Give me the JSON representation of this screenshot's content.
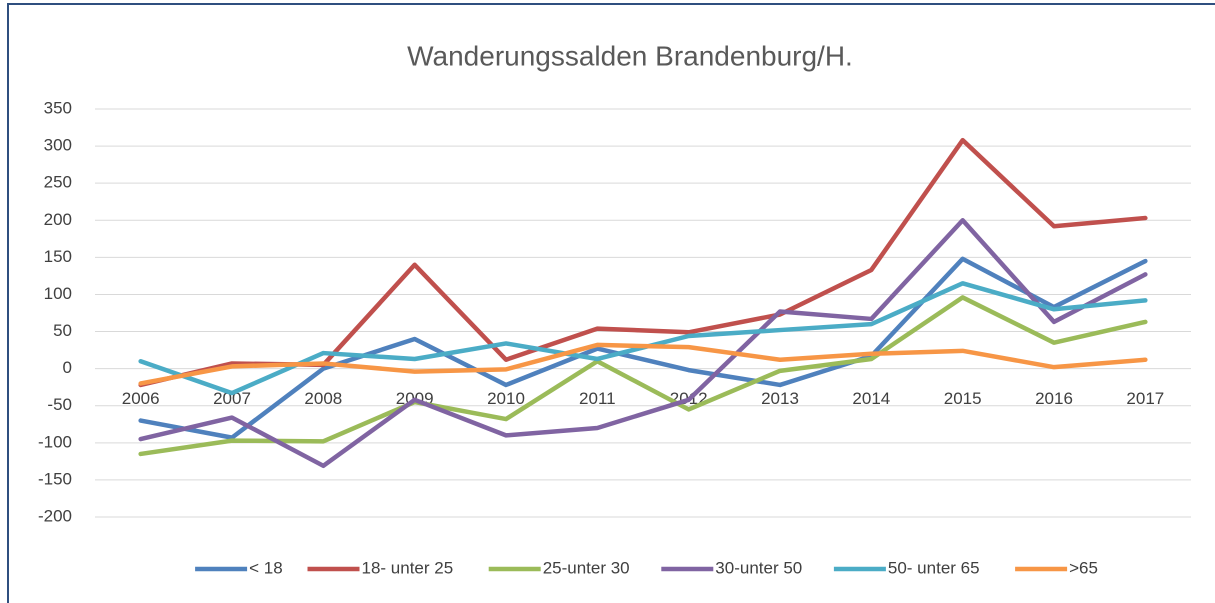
{
  "chart_data": {
    "type": "line",
    "title": "Wanderungssalden Brandenburg/H.",
    "categories": [
      "2006",
      "2007",
      "2008",
      "2009",
      "2010",
      "2011",
      "2012",
      "2013",
      "2014",
      "2015",
      "2016",
      "2017"
    ],
    "series": [
      {
        "name": "< 18",
        "color": "#4f81bd",
        "values": [
          -70,
          -93,
          0,
          40,
          -22,
          27,
          -2,
          -22,
          17,
          148,
          83,
          145
        ]
      },
      {
        "name": "18- unter 25",
        "color": "#c0504d",
        "values": [
          -22,
          7,
          5,
          140,
          12,
          54,
          49,
          73,
          133,
          308,
          192,
          203
        ]
      },
      {
        "name": "25-unter 30",
        "color": "#9bbb59",
        "values": [
          -115,
          -97,
          -98,
          -45,
          -68,
          10,
          -55,
          -3,
          13,
          96,
          35,
          63
        ]
      },
      {
        "name": "30-unter 50",
        "color": "#8064a2",
        "values": [
          -95,
          -66,
          -131,
          -42,
          -90,
          -80,
          -42,
          77,
          67,
          200,
          63,
          127
        ]
      },
      {
        "name": "50- unter 65",
        "color": "#4bacc6",
        "values": [
          10,
          -33,
          21,
          13,
          34,
          13,
          44,
          52,
          60,
          115,
          80,
          92
        ]
      },
      {
        "name": ">65",
        "color": "#f79646",
        "values": [
          -20,
          3,
          7,
          -4,
          -1,
          32,
          29,
          12,
          20,
          24,
          2,
          12
        ]
      }
    ],
    "ylim": [
      -200,
      350
    ],
    "yticks": [
      -200,
      -150,
      -100,
      -50,
      0,
      50,
      100,
      150,
      200,
      250,
      300,
      350
    ],
    "grid": true,
    "legend": "bottom"
  }
}
